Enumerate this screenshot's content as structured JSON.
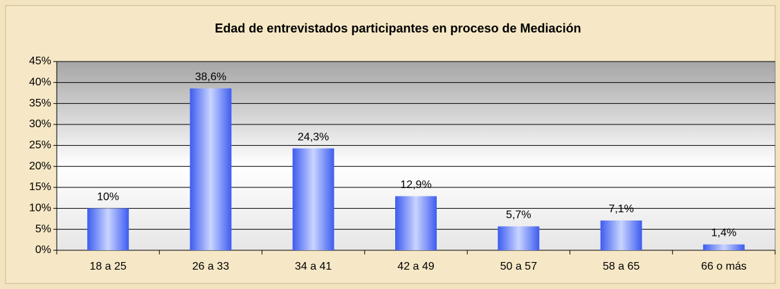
{
  "chart_data": {
    "type": "bar",
    "title": "Edad de entrevistados participantes en proceso de Mediación",
    "categories": [
      "18 a 25",
      "26 a 33",
      "34 a 41",
      "42 a 49",
      "50 a 57",
      "58 a 65",
      "66 o más"
    ],
    "values": [
      10,
      38.6,
      24.3,
      12.9,
      5.7,
      7.1,
      1.4
    ],
    "value_labels": [
      "10%",
      "38,6%",
      "24,3%",
      "12,9%",
      "5,7%",
      "7,1%",
      "1,4%"
    ],
    "color": "#4d6df5",
    "ylim": [
      0,
      45
    ],
    "yticks": [
      {
        "value": 0,
        "label": "0%"
      },
      {
        "value": 5,
        "label": "5%"
      },
      {
        "value": 10,
        "label": "10%"
      },
      {
        "value": 15,
        "label": "15%"
      },
      {
        "value": 20,
        "label": "20%"
      },
      {
        "value": 25,
        "label": "25%"
      },
      {
        "value": 30,
        "label": "30%"
      },
      {
        "value": 35,
        "label": "35%"
      },
      {
        "value": 40,
        "label": "40%"
      },
      {
        "value": 45,
        "label": "45%"
      }
    ],
    "grid": true
  }
}
